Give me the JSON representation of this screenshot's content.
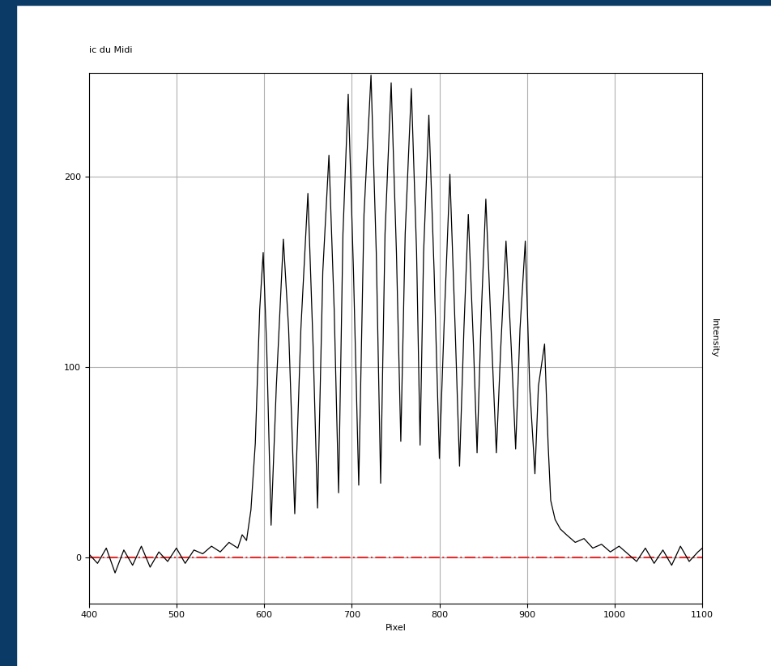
{
  "chart_data": {
    "type": "line",
    "title": "ic du Midi",
    "x_label": "Pixel",
    "y_label": "Intensity",
    "x": [
      400,
      410,
      420,
      430,
      440,
      450,
      460,
      470,
      480,
      490,
      500,
      510,
      520,
      530,
      540,
      550,
      560,
      570,
      575,
      580,
      585,
      590,
      595,
      599,
      603,
      608,
      614,
      622,
      628,
      635,
      642,
      650,
      656,
      661,
      667,
      674,
      680,
      685,
      690,
      696,
      702,
      708,
      714,
      722,
      728,
      733,
      738,
      745,
      751,
      756,
      761,
      768,
      774,
      778,
      782,
      788,
      794,
      800,
      806,
      812,
      818,
      823,
      828,
      833,
      839,
      843,
      848,
      853,
      859,
      865,
      870,
      876,
      882,
      887,
      892,
      898,
      903,
      909,
      913,
      920,
      924,
      927,
      932,
      938,
      945,
      955,
      965,
      975,
      985,
      995,
      1005,
      1015,
      1025,
      1035,
      1045,
      1055,
      1065,
      1075,
      1085,
      1095,
      1100
    ],
    "values": [
      2,
      -3,
      5,
      -8,
      4,
      -4,
      6,
      -5,
      3,
      -2,
      5,
      -3,
      4,
      2,
      6,
      3,
      8,
      5,
      12,
      9,
      25,
      60,
      130,
      160,
      110,
      17,
      90,
      167,
      120,
      23,
      120,
      191,
      110,
      26,
      150,
      211,
      130,
      34,
      170,
      243,
      150,
      38,
      180,
      253,
      160,
      39,
      170,
      249,
      160,
      61,
      170,
      246,
      160,
      59,
      160,
      232,
      150,
      52,
      130,
      201,
      120,
      48,
      120,
      180,
      110,
      55,
      130,
      188,
      120,
      55,
      110,
      166,
      110,
      57,
      120,
      166,
      90,
      44,
      90,
      112,
      60,
      30,
      20,
      15,
      12,
      8,
      10,
      5,
      7,
      3,
      6,
      2,
      -2,
      5,
      -3,
      4,
      -4,
      6,
      -2,
      3,
      5
    ],
    "color": "#000000",
    "xlim": [
      400,
      1100
    ],
    "xticks": [
      400,
      500,
      600,
      700,
      800,
      900,
      1000,
      1100
    ],
    "ylim": [
      -24,
      254
    ],
    "yticks": [
      0,
      100,
      200
    ],
    "grid": true,
    "reference_line": {
      "value": 0,
      "color": "#e03030",
      "line_style": "dashdot"
    }
  }
}
